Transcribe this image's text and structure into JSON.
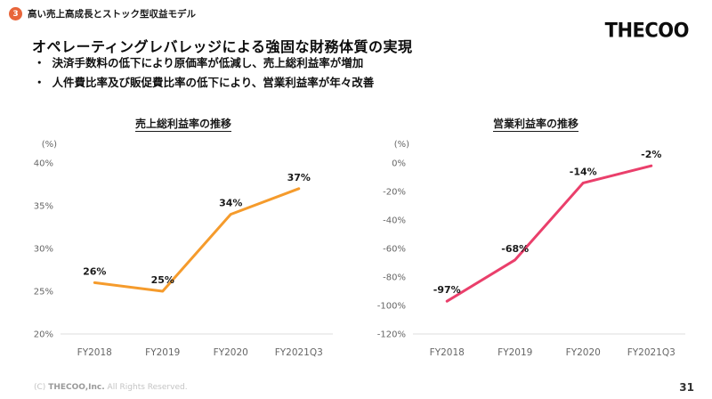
{
  "slide": {
    "badge_number": "3",
    "kicker": "高い売上高成長とストック型収益モデル",
    "title": "オペレーティングレバレッジによる強固な財務体質の実現",
    "logo": "THECOO",
    "bullets": [
      "決済手数料の低下により原価率が低減し、売上総利益率が増加",
      "人件費比率及び販促費比率の低下により、営業利益率が年々改善"
    ],
    "footer": {
      "prefix": "(C)",
      "company": "THECOO,Inc.",
      "rights": "All Rights Reserved."
    },
    "page_number": "31"
  },
  "chart_data": [
    {
      "type": "line",
      "title": "売上総利益率の推移",
      "unit_label": "(%)",
      "categories": [
        "FY2018",
        "FY2019",
        "FY2020",
        "FY2021Q3"
      ],
      "values": [
        26,
        25,
        34,
        37
      ],
      "data_labels": [
        "26%",
        "25%",
        "34%",
        "37%"
      ],
      "ylim": [
        20,
        40
      ],
      "ytick_step": 5,
      "yticks": [
        "40%",
        "35%",
        "30%",
        "25%",
        "20%"
      ],
      "line_color": "#f59b2c",
      "grid": false,
      "legend": "none",
      "xlabel": "",
      "ylabel": ""
    },
    {
      "type": "line",
      "title": "営業利益率の推移",
      "unit_label": "(%)",
      "categories": [
        "FY2018",
        "FY2019",
        "FY2020",
        "FY2021Q3"
      ],
      "values": [
        -97,
        -68,
        -14,
        -2
      ],
      "data_labels": [
        "-97%",
        "-68%",
        "-14%",
        "-2%"
      ],
      "ylim": [
        -120,
        0
      ],
      "ytick_step": 20,
      "yticks": [
        "0%",
        "-20%",
        "-40%",
        "-60%",
        "-80%",
        "-100%",
        "-120%"
      ],
      "line_color": "#ea3f6b",
      "grid": false,
      "legend": "none",
      "xlabel": "",
      "ylabel": ""
    }
  ]
}
